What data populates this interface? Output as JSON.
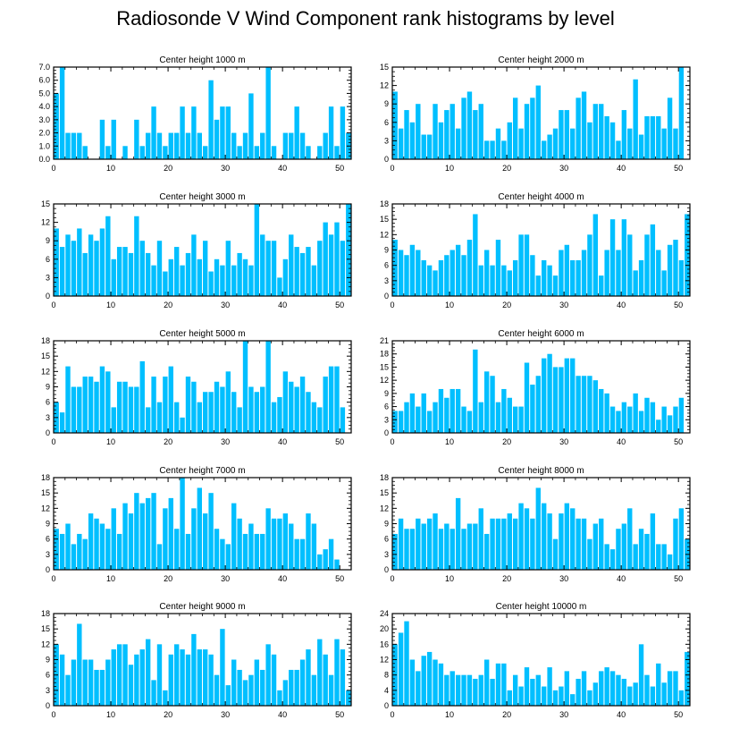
{
  "title": "Radiosonde V Wind Component rank histograms by level",
  "colors": {
    "bar": "#00bfff",
    "axis": "#000000",
    "background": "#ffffff"
  },
  "chart_data": [
    {
      "type": "bar",
      "title": "Center height 1000 m",
      "xlim": [
        0,
        52
      ],
      "ylim": [
        0,
        7
      ],
      "yticks": [
        "0.0",
        "1.0",
        "2.0",
        "3.0",
        "4.0",
        "5.0",
        "6.0",
        "7.0"
      ],
      "xticks": [
        "0",
        "10",
        "20",
        "30",
        "40",
        "50"
      ],
      "values": [
        5,
        7,
        2,
        2,
        2,
        1,
        0,
        0,
        3,
        1,
        3,
        0,
        1,
        0,
        3,
        1,
        2,
        4,
        2,
        1,
        2,
        2,
        4,
        2,
        4,
        2,
        1,
        6,
        3,
        4,
        4,
        2,
        1,
        2,
        5,
        1,
        2,
        7,
        1,
        0,
        2,
        2,
        4,
        2,
        1,
        0,
        1,
        2,
        4,
        1,
        4,
        2
      ]
    },
    {
      "type": "bar",
      "title": "Center height 2000 m",
      "xlim": [
        0,
        52
      ],
      "ylim": [
        0,
        15
      ],
      "yticks": [
        "0",
        "3",
        "6",
        "9",
        "12",
        "15"
      ],
      "xticks": [
        "0",
        "10",
        "20",
        "30",
        "40",
        "50"
      ],
      "values": [
        11,
        5,
        8,
        6,
        9,
        4,
        4,
        9,
        6,
        8,
        9,
        5,
        10,
        11,
        8,
        9,
        3,
        3,
        5,
        3,
        6,
        10,
        5,
        9,
        10,
        12,
        3,
        4,
        5,
        8,
        8,
        5,
        10,
        11,
        6,
        9,
        9,
        7,
        6,
        3,
        8,
        5,
        13,
        4,
        7,
        7,
        7,
        5,
        10,
        5,
        15,
        0
      ]
    },
    {
      "type": "bar",
      "title": "Center height 3000 m",
      "xlim": [
        0,
        52
      ],
      "ylim": [
        0,
        15
      ],
      "yticks": [
        "0",
        "3",
        "6",
        "9",
        "12",
        "15"
      ],
      "xticks": [
        "0",
        "10",
        "20",
        "30",
        "40",
        "50"
      ],
      "values": [
        11,
        8,
        10,
        9,
        11,
        7,
        10,
        9,
        11,
        13,
        6,
        8,
        8,
        7,
        13,
        9,
        7,
        5,
        9,
        4,
        6,
        8,
        5,
        7,
        10,
        6,
        9,
        4,
        6,
        5,
        9,
        5,
        7,
        6,
        5,
        15,
        10,
        9,
        9,
        3,
        6,
        10,
        8,
        7,
        8,
        5,
        9,
        12,
        10,
        12,
        9,
        15
      ]
    },
    {
      "type": "bar",
      "title": "Center height 4000 m",
      "xlim": [
        0,
        52
      ],
      "ylim": [
        0,
        18
      ],
      "yticks": [
        "0",
        "3",
        "6",
        "9",
        "12",
        "15",
        "18"
      ],
      "xticks": [
        "0",
        "10",
        "20",
        "30",
        "40",
        "50"
      ],
      "values": [
        11,
        9,
        8,
        10,
        9,
        7,
        6,
        5,
        7,
        8,
        9,
        10,
        8,
        11,
        16,
        6,
        9,
        6,
        11,
        6,
        5,
        7,
        12,
        12,
        8,
        4,
        7,
        6,
        4,
        9,
        10,
        7,
        7,
        9,
        12,
        16,
        4,
        9,
        15,
        9,
        15,
        12,
        5,
        7,
        12,
        14,
        9,
        5,
        10,
        11,
        7,
        16
      ]
    },
    {
      "type": "bar",
      "title": "Center height 5000 m",
      "xlim": [
        0,
        52
      ],
      "ylim": [
        0,
        18
      ],
      "yticks": [
        "0",
        "3",
        "6",
        "9",
        "12",
        "15",
        "18"
      ],
      "xticks": [
        "0",
        "10",
        "20",
        "30",
        "40",
        "50"
      ],
      "values": [
        6,
        4,
        13,
        9,
        9,
        11,
        11,
        10,
        13,
        12,
        5,
        10,
        10,
        9,
        9,
        14,
        5,
        11,
        6,
        11,
        13,
        6,
        3,
        11,
        10,
        6,
        8,
        8,
        10,
        9,
        12,
        8,
        5,
        18,
        9,
        8,
        9,
        18,
        6,
        7,
        12,
        10,
        9,
        11,
        8,
        6,
        5,
        11,
        13,
        13,
        5,
        0
      ]
    },
    {
      "type": "bar",
      "title": "Center height 6000 m",
      "xlim": [
        0,
        52
      ],
      "ylim": [
        0,
        21
      ],
      "yticks": [
        "0",
        "3",
        "6",
        "9",
        "12",
        "15",
        "18",
        "21"
      ],
      "xticks": [
        "0",
        "10",
        "20",
        "30",
        "40",
        "50"
      ],
      "values": [
        5,
        5,
        7,
        9,
        6,
        9,
        5,
        7,
        10,
        8,
        10,
        10,
        6,
        5,
        19,
        7,
        14,
        13,
        7,
        10,
        8,
        6,
        6,
        16,
        11,
        13,
        17,
        18,
        15,
        15,
        17,
        17,
        13,
        13,
        13,
        12,
        10,
        9,
        6,
        5,
        7,
        6,
        9,
        5,
        8,
        7,
        3,
        6,
        4,
        6,
        8,
        0
      ]
    },
    {
      "type": "bar",
      "title": "Center height 7000 m",
      "xlim": [
        0,
        52
      ],
      "ylim": [
        0,
        18
      ],
      "yticks": [
        "0",
        "3",
        "6",
        "9",
        "12",
        "15",
        "18"
      ],
      "xticks": [
        "0",
        "10",
        "20",
        "30",
        "40",
        "50"
      ],
      "values": [
        8,
        7,
        9,
        5,
        7,
        6,
        11,
        10,
        9,
        8,
        12,
        7,
        13,
        11,
        15,
        13,
        14,
        15,
        5,
        12,
        14,
        8,
        18,
        7,
        12,
        16,
        11,
        15,
        8,
        6,
        5,
        13,
        10,
        7,
        9,
        7,
        7,
        12,
        10,
        10,
        11,
        9,
        6,
        6,
        11,
        9,
        3,
        4,
        6,
        2,
        0,
        0
      ]
    },
    {
      "type": "bar",
      "title": "Center height 8000 m",
      "xlim": [
        0,
        52
      ],
      "ylim": [
        0,
        18
      ],
      "yticks": [
        "0",
        "3",
        "6",
        "9",
        "12",
        "15",
        "18"
      ],
      "xticks": [
        "0",
        "10",
        "20",
        "30",
        "40",
        "50"
      ],
      "values": [
        7,
        10,
        8,
        8,
        10,
        9,
        10,
        11,
        8,
        9,
        8,
        14,
        8,
        9,
        9,
        12,
        7,
        10,
        10,
        10,
        11,
        10,
        13,
        12,
        10,
        16,
        13,
        11,
        6,
        11,
        13,
        12,
        10,
        10,
        6,
        9,
        10,
        5,
        4,
        8,
        9,
        12,
        5,
        8,
        7,
        11,
        5,
        5,
        3,
        10,
        12,
        6
      ]
    },
    {
      "type": "bar",
      "title": "Center height 9000 m",
      "xlim": [
        0,
        52
      ],
      "ylim": [
        0,
        18
      ],
      "yticks": [
        "0",
        "3",
        "6",
        "9",
        "12",
        "15",
        "18"
      ],
      "xticks": [
        "0",
        "10",
        "20",
        "30",
        "40",
        "50"
      ],
      "values": [
        12,
        10,
        6,
        9,
        16,
        9,
        9,
        7,
        7,
        9,
        11,
        12,
        12,
        8,
        10,
        11,
        13,
        5,
        12,
        3,
        10,
        12,
        11,
        10,
        14,
        11,
        11,
        10,
        6,
        15,
        4,
        9,
        7,
        5,
        6,
        9,
        7,
        12,
        10,
        3,
        5,
        7,
        7,
        9,
        11,
        6,
        13,
        10,
        6,
        13,
        11,
        3
      ]
    },
    {
      "type": "bar",
      "title": "Center height 10000 m",
      "xlim": [
        0,
        52
      ],
      "ylim": [
        0,
        24
      ],
      "yticks": [
        "0",
        "4",
        "8",
        "12",
        "16",
        "20",
        "24"
      ],
      "xticks": [
        "0",
        "10",
        "20",
        "30",
        "40",
        "50"
      ],
      "values": [
        16,
        19,
        22,
        12,
        9,
        13,
        14,
        12,
        11,
        8,
        9,
        8,
        8,
        8,
        7,
        8,
        12,
        7,
        11,
        11,
        4,
        8,
        5,
        10,
        7,
        8,
        5,
        10,
        4,
        5,
        9,
        3,
        7,
        9,
        4,
        6,
        9,
        10,
        9,
        8,
        7,
        5,
        6,
        16,
        8,
        5,
        11,
        6,
        9,
        9,
        4,
        14
      ]
    }
  ]
}
